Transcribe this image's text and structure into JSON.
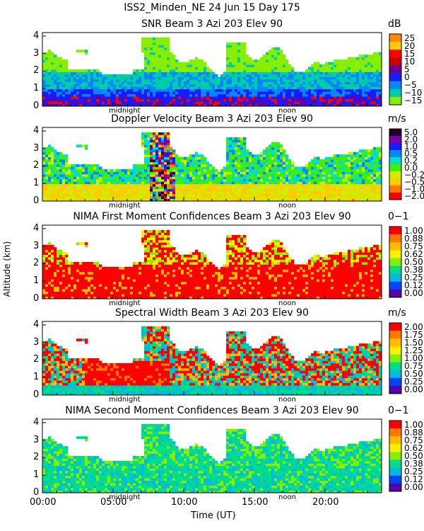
{
  "figure": {
    "title": "ISS2_Minden_NE  24 Jun 15 Day 175",
    "ylabel": "Altitude (km)",
    "xlabel": "Time (UT)",
    "xtick_labels": [
      "00:00",
      "05:00",
      "10:00",
      "15:00",
      "20:00"
    ],
    "ytick_labels": [
      "0",
      "1",
      "2",
      "3",
      "4"
    ],
    "midnight_label": "midnight",
    "noon_label": "noon"
  },
  "chart_data": [
    {
      "type": "heatmap",
      "title": "SNR Beam 3 Azi 203 Elev 90",
      "unit": "dB",
      "xlabel": "Time (UT)",
      "ylabel": "Altitude (km)",
      "xlim": [
        0,
        24
      ],
      "ylim": [
        0,
        4.2
      ],
      "colorbar": [
        "25",
        "20",
        "15",
        "10",
        "5",
        "0",
        "−5",
        "−10",
        "−15"
      ],
      "colors": [
        "#ff8800",
        "#ffcc00",
        "#ff0000",
        "#cc0000",
        "#660099",
        "#1a1aff",
        "#0088ff",
        "#00ccaa",
        "#88ee00"
      ]
    },
    {
      "type": "heatmap",
      "title": "Doppler Velocity Beam 3 Azi 203 Elev 90",
      "unit": "m/s",
      "xlabel": "Time (UT)",
      "ylabel": "Altitude (km)",
      "xlim": [
        0,
        24
      ],
      "ylim": [
        0,
        4.2
      ],
      "colorbar": [
        "5.0",
        "2.0",
        "1.0",
        "0.5",
        "0.2",
        "0.0",
        "−0.2",
        "−0.5",
        "−1.0",
        "−2.0"
      ],
      "colors": [
        "#220022",
        "#7700aa",
        "#1a1aff",
        "#0088ff",
        "#00ddcc",
        "#44ee00",
        "#ccee00",
        "#ffcc00",
        "#ff7700",
        "#ff0000"
      ]
    },
    {
      "type": "heatmap",
      "title": "NIMA First Moment Confidences Beam 3 Azi 203 Elev 90",
      "unit": "0−1",
      "xlabel": "Time (UT)",
      "ylabel": "Altitude (km)",
      "xlim": [
        0,
        24
      ],
      "ylim": [
        0,
        4.2
      ],
      "colorbar": [
        "1.00",
        "0.88",
        "0.75",
        "0.62",
        "0.50",
        "0.38",
        "0.25",
        "0.12",
        "0.00"
      ],
      "colors": [
        "#ff0000",
        "#ff7700",
        "#ffbb00",
        "#ffee00",
        "#88ee00",
        "#00dd88",
        "#00bbdd",
        "#0044ff",
        "#5500aa"
      ]
    },
    {
      "type": "heatmap",
      "title": "Spectral Width Beam 3 Azi 203 Elev 90",
      "unit": "m/s",
      "xlabel": "Time (UT)",
      "ylabel": "Altitude (km)",
      "xlim": [
        0,
        24
      ],
      "ylim": [
        0,
        4.2
      ],
      "colorbar": [
        "2.00",
        "1.75",
        "1.50",
        "1.25",
        "1.00",
        "0.75",
        "0.50",
        "0.25",
        "0.00"
      ],
      "colors": [
        "#ff0000",
        "#ff7700",
        "#ffbb00",
        "#ffee00",
        "#88ee00",
        "#00dd88",
        "#00bbdd",
        "#0044ff",
        "#5500aa"
      ]
    },
    {
      "type": "heatmap",
      "title": "NIMA Second Moment Confidences Beam 3 Azi 203 Elev 90",
      "unit": "0−1",
      "xlabel": "Time (UT)",
      "ylabel": "Altitude (km)",
      "xlim": [
        0,
        24
      ],
      "ylim": [
        0,
        4.2
      ],
      "colorbar": [
        "1.00",
        "0.88",
        "0.75",
        "0.62",
        "0.50",
        "0.38",
        "0.25",
        "0.12",
        "0.00"
      ],
      "colors": [
        "#ff0000",
        "#ff7700",
        "#ffbb00",
        "#ffee00",
        "#88ee00",
        "#00dd88",
        "#00bbdd",
        "#0044ff",
        "#5500aa"
      ]
    }
  ]
}
